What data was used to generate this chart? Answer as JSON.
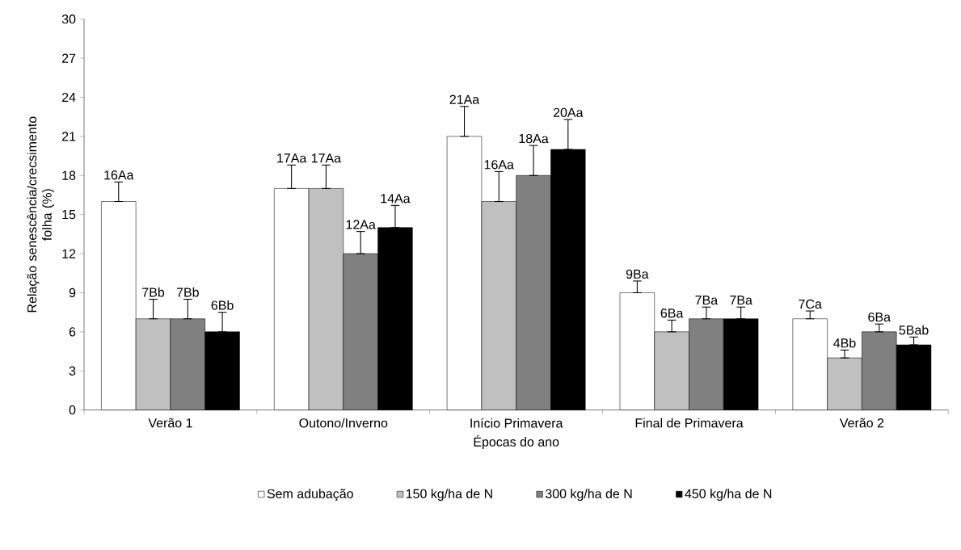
{
  "chart_data": {
    "type": "bar",
    "xlabel": "Épocas do ano",
    "ylabel": "Relação senescência/crecsimento folha (%)",
    "categories": [
      "Verão 1",
      "Outono/Inverno",
      "Início Primavera",
      "Final de Primavera",
      "Verão 2"
    ],
    "ylim": [
      0,
      30
    ],
    "yticks": [
      0,
      3,
      6,
      9,
      12,
      15,
      18,
      21,
      24,
      27,
      30
    ],
    "grid": false,
    "legend": "bottom",
    "series": [
      {
        "name": "Sem adubação",
        "color": "#ffffff",
        "values": [
          16,
          17,
          21,
          9,
          7
        ],
        "errors": [
          [
            16,
            17.5
          ],
          [
            17,
            18.8
          ],
          [
            21,
            23.3
          ],
          [
            9,
            9.9
          ],
          [
            7,
            7.6
          ]
        ],
        "value_labels": [
          "16Aa",
          "17Aa",
          "21Aa",
          "9Ba",
          "7Ca"
        ]
      },
      {
        "name": "150 kg/ha de N",
        "color": "#c0c0c0",
        "values": [
          7,
          17,
          16,
          6,
          4
        ],
        "errors": [
          [
            7,
            8.5
          ],
          [
            17,
            18.8
          ],
          [
            16,
            18.3
          ],
          [
            6,
            6.9
          ],
          [
            4,
            4.6
          ]
        ],
        "value_labels": [
          "7Bb",
          "17Aa",
          "16Aa",
          "6Ba",
          "4Bb"
        ]
      },
      {
        "name": "300 kg/ha de N",
        "color": "#808080",
        "values": [
          7,
          12,
          18,
          7,
          6
        ],
        "errors": [
          [
            7,
            8.5
          ],
          [
            12,
            13.7
          ],
          [
            18,
            20.3
          ],
          [
            7,
            7.9
          ],
          [
            6,
            6.6
          ]
        ],
        "value_labels": [
          "7Bb",
          "12Aa",
          "18Aa",
          "7Ba",
          "6Ba"
        ]
      },
      {
        "name": "450 kg/ha de N",
        "color": "#000000",
        "values": [
          6,
          14,
          20,
          7,
          5
        ],
        "errors": [
          [
            6,
            7.5
          ],
          [
            14,
            15.7
          ],
          [
            20,
            22.3
          ],
          [
            7,
            7.9
          ],
          [
            5,
            5.6
          ]
        ],
        "value_labels": [
          "6Bb",
          "14Aa",
          "20Aa",
          "7Ba",
          "5Bab"
        ]
      }
    ]
  }
}
